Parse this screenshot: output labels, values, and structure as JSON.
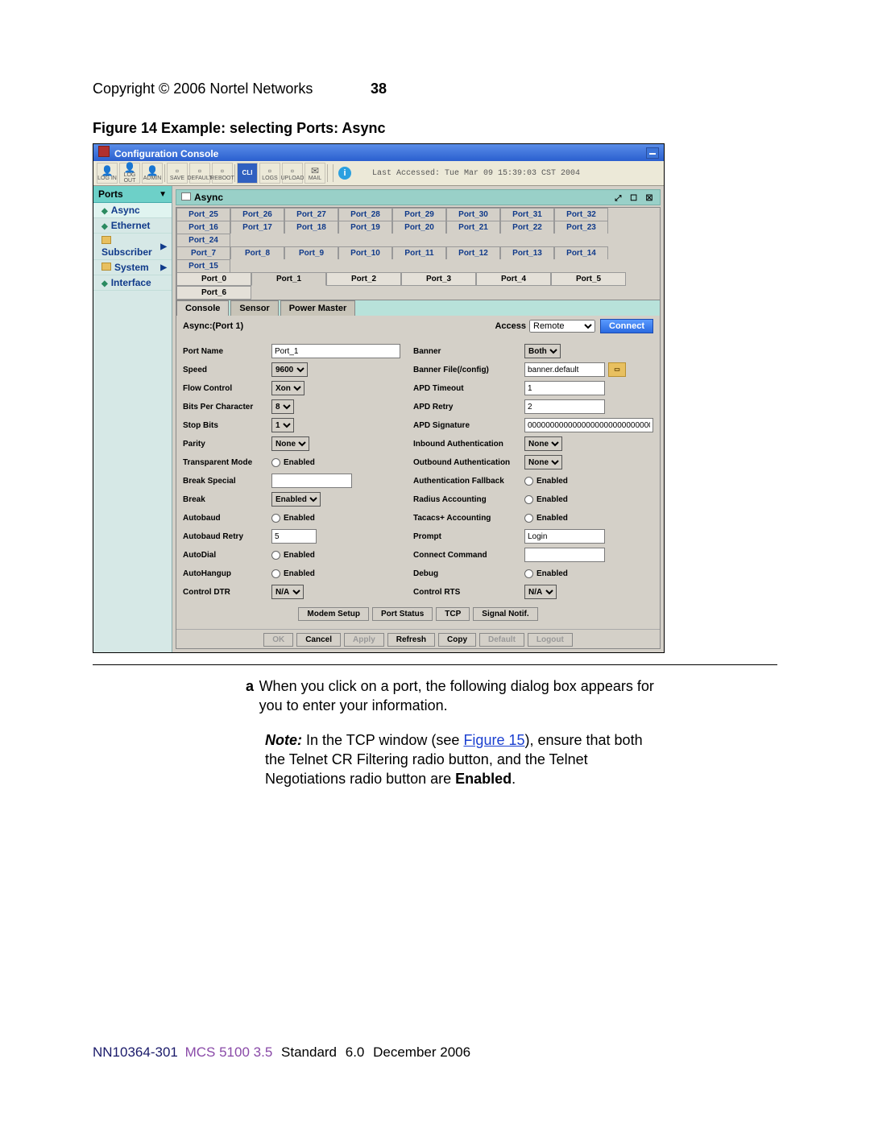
{
  "page": {
    "copyright": "Copyright © 2006 Nortel Networks",
    "number": "38",
    "figure_caption": "Figure 14  Example: selecting Ports: Async"
  },
  "titlebar": {
    "title": "Configuration Console"
  },
  "toolbar": {
    "buttons": [
      "LOG IN",
      "LOG OUT",
      "ADMIN",
      "SAVE",
      "DEFAULT",
      "REBOOT",
      "CLI",
      "LOGS",
      "UPLOAD",
      "MAIL"
    ],
    "last_accessed": "Last Accessed: Tue Mar 09 15:39:03 CST 2004"
  },
  "sidebar": {
    "header": "Ports",
    "items": [
      {
        "label": "Async",
        "kind": "leaf",
        "selected": true
      },
      {
        "label": "Ethernet",
        "kind": "leaf"
      },
      {
        "label": "Subscriber",
        "kind": "folder",
        "submenu": true
      },
      {
        "label": "System",
        "kind": "folder",
        "submenu": true
      },
      {
        "label": "Interface",
        "kind": "leaf"
      }
    ]
  },
  "subwin": {
    "title": "Async"
  },
  "port_tabs": {
    "row1": [
      "Port_25",
      "Port_26",
      "Port_27",
      "Port_28",
      "Port_29",
      "Port_30",
      "Port_31",
      "Port_32"
    ],
    "row2": [
      "Port_16",
      "Port_17",
      "Port_18",
      "Port_19",
      "Port_20",
      "Port_21",
      "Port_22",
      "Port_23",
      "Port_24"
    ],
    "row3": [
      "Port_7",
      "Port_8",
      "Port_9",
      "Port_10",
      "Port_11",
      "Port_12",
      "Port_13",
      "Port_14",
      "Port_15"
    ],
    "row4": [
      "Port_0",
      "Port_1",
      "Port_2",
      "Port_3",
      "Port_4",
      "Port_5",
      "Port_6"
    ],
    "selected": "Port_1"
  },
  "sub_tabs": [
    "Console",
    "Sensor",
    "Power Master"
  ],
  "form": {
    "header": "Async:(Port 1)",
    "access_label": "Access",
    "access_value": "Remote",
    "connect": "Connect",
    "left": [
      {
        "label": "Port Name",
        "type": "text",
        "value": "Port_1",
        "w": "wide"
      },
      {
        "label": "Speed",
        "type": "select",
        "value": "9600"
      },
      {
        "label": "Flow Control",
        "type": "select",
        "value": "Xon"
      },
      {
        "label": "Bits Per Character",
        "type": "select",
        "value": "8"
      },
      {
        "label": "Stop Bits",
        "type": "select",
        "value": "1"
      },
      {
        "label": "Parity",
        "type": "select",
        "value": "None"
      },
      {
        "label": "Transparent Mode",
        "type": "radio",
        "value": "Enabled"
      },
      {
        "label": "Break Special",
        "type": "text",
        "value": "",
        "w": "mid"
      },
      {
        "label": "Break",
        "type": "select",
        "value": "Enabled"
      },
      {
        "label": "Autobaud",
        "type": "radio",
        "value": "Enabled"
      },
      {
        "label": "Autobaud Retry",
        "type": "text",
        "value": "5",
        "w": "small"
      },
      {
        "label": "AutoDial",
        "type": "radio",
        "value": "Enabled"
      },
      {
        "label": "AutoHangup",
        "type": "radio",
        "value": "Enabled"
      },
      {
        "label": "Control DTR",
        "type": "select",
        "value": "N/A"
      }
    ],
    "right": [
      {
        "label": "Banner",
        "type": "select",
        "value": "Both"
      },
      {
        "label": "Banner File(/config)",
        "type": "filetext",
        "value": "banner.default"
      },
      {
        "label": "APD Timeout",
        "type": "text",
        "value": "1",
        "w": "mid"
      },
      {
        "label": "APD Retry",
        "type": "text",
        "value": "2",
        "w": "mid"
      },
      {
        "label": "APD Signature",
        "type": "text",
        "value": "00000000000000000000000000000",
        "w": "wide"
      },
      {
        "label": "Inbound Authentication",
        "type": "select",
        "value": "None"
      },
      {
        "label": "Outbound Authentication",
        "type": "select",
        "value": "None"
      },
      {
        "label": "Authentication Fallback",
        "type": "radio",
        "value": "Enabled"
      },
      {
        "label": "Radius Accounting",
        "type": "radio",
        "value": "Enabled"
      },
      {
        "label": "Tacacs+ Accounting",
        "type": "radio",
        "value": "Enabled"
      },
      {
        "label": "Prompt",
        "type": "text",
        "value": "Login",
        "w": "mid"
      },
      {
        "label": "Connect Command",
        "type": "text",
        "value": "",
        "w": "mid"
      },
      {
        "label": "Debug",
        "type": "radio",
        "value": "Enabled"
      },
      {
        "label": "Control RTS",
        "type": "select",
        "value": "N/A"
      }
    ],
    "bottom_buttons": [
      "Modem Setup",
      "Port Status",
      "TCP",
      "Signal Notif."
    ],
    "footer_buttons": [
      {
        "label": "OK",
        "disabled": true
      },
      {
        "label": "Cancel",
        "disabled": false
      },
      {
        "label": "Apply",
        "disabled": true
      },
      {
        "label": "Refresh",
        "disabled": false
      },
      {
        "label": "Copy",
        "disabled": false
      },
      {
        "label": "Default",
        "disabled": true
      },
      {
        "label": "Logout",
        "disabled": true
      }
    ]
  },
  "body_text": {
    "a_marker": "a",
    "a_text": "When you click on a port, the following dialog box appears for you to enter your information.",
    "note_label": "Note:",
    "note_text_1": " In the TCP window (see ",
    "note_link": "Figure 15",
    "note_text_2": "), ensure that both the Telnet CR Filtering radio button, and the Telnet Negotiations radio button are ",
    "note_bold": "Enabled",
    "note_text_3": "."
  },
  "footer": {
    "p1": "NN10364-301",
    "p2": "MCS 5100 3.5",
    "p3": "Standard",
    "p4": "6.0",
    "p5": "December 2006"
  },
  "colors": {
    "header_blue": "#2a5fcf",
    "teal": "#6dd0c8",
    "panel": "#d4d0c8",
    "link": "#1a3fd0"
  }
}
